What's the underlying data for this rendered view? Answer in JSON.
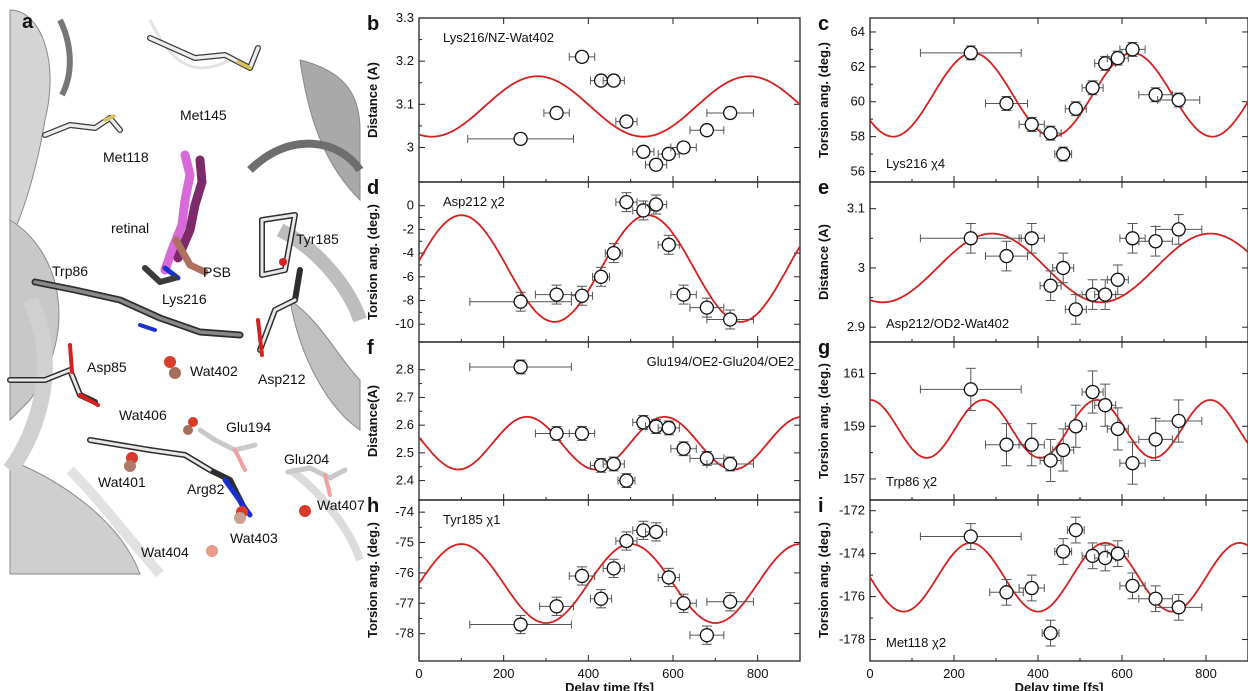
{
  "figure": {
    "structure_panel": {
      "letter": "a",
      "labels": [
        {
          "id": "met145",
          "text": "Met145"
        },
        {
          "id": "met118",
          "text": "Met118"
        },
        {
          "id": "retinal",
          "text": "retinal"
        },
        {
          "id": "tyr185",
          "text": "Tyr185"
        },
        {
          "id": "trp86",
          "text": "Trp86"
        },
        {
          "id": "psb",
          "text": "PSB"
        },
        {
          "id": "lys216",
          "text": "Lys216"
        },
        {
          "id": "asp85",
          "text": "Asp85"
        },
        {
          "id": "wat402",
          "text": "Wat402"
        },
        {
          "id": "asp212",
          "text": "Asp212"
        },
        {
          "id": "wat406",
          "text": "Wat406"
        },
        {
          "id": "glu194",
          "text": "Glu194"
        },
        {
          "id": "glu204",
          "text": "Glu204"
        },
        {
          "id": "wat401",
          "text": "Wat401"
        },
        {
          "id": "arg82",
          "text": "Arg82"
        },
        {
          "id": "wat407",
          "text": "Wat407"
        },
        {
          "id": "wat403",
          "text": "Wat403"
        },
        {
          "id": "wat404",
          "text": "Wat404"
        }
      ]
    }
  },
  "chart_data": [
    {
      "id": "b",
      "letter": "b",
      "type": "scatter",
      "title": "Lys216/NZ-Wat402",
      "ylabel": "Distance (A)",
      "xlabel": "",
      "xlim": [
        0,
        900
      ],
      "ylim": [
        2.92,
        3.3
      ],
      "yticks": [
        3,
        3.1,
        3.2,
        3.3
      ],
      "ytick_labels": [
        "3",
        "3.1",
        "3.2",
        "3.3"
      ],
      "xticks": [
        0,
        200,
        400,
        600,
        800
      ],
      "xtick_labels": [],
      "points": [
        {
          "x": 240,
          "y": 3.02,
          "xerr": 125,
          "yerr": 0.012
        },
        {
          "x": 325,
          "y": 3.08,
          "xerr": 30,
          "yerr": 0.012
        },
        {
          "x": 385,
          "y": 3.21,
          "xerr": 30,
          "yerr": 0.012
        },
        {
          "x": 430,
          "y": 3.155,
          "xerr": 25,
          "yerr": 0.012
        },
        {
          "x": 460,
          "y": 3.155,
          "xerr": 25,
          "yerr": 0.012
        },
        {
          "x": 490,
          "y": 3.06,
          "xerr": 25,
          "yerr": 0.012
        },
        {
          "x": 530,
          "y": 2.99,
          "xerr": 25,
          "yerr": 0.012
        },
        {
          "x": 560,
          "y": 2.96,
          "xerr": 25,
          "yerr": 0.012
        },
        {
          "x": 590,
          "y": 2.985,
          "xerr": 25,
          "yerr": 0.012
        },
        {
          "x": 625,
          "y": 3.0,
          "xerr": 30,
          "yerr": 0.012
        },
        {
          "x": 680,
          "y": 3.04,
          "xerr": 40,
          "yerr": 0.012
        },
        {
          "x": 735,
          "y": 3.08,
          "xerr": 55,
          "yerr": 0.012
        }
      ],
      "fit": {
        "mean": 3.095,
        "amp": 0.07,
        "period": 500,
        "peak_x": 780
      }
    },
    {
      "id": "c",
      "letter": "c",
      "type": "scatter",
      "title": "Lys216 χ4",
      "ylabel": "Torsion ang. (deg.)",
      "xlabel": "",
      "xlim": [
        0,
        900
      ],
      "ylim": [
        55.4,
        64.8
      ],
      "yticks": [
        56,
        58,
        60,
        62,
        64
      ],
      "ytick_labels": [
        "56",
        "58",
        "60",
        "62",
        "64"
      ],
      "xticks": [
        0,
        200,
        400,
        600,
        800
      ],
      "xtick_labels": [],
      "points": [
        {
          "x": 240,
          "y": 62.8,
          "xerr": 120,
          "yerr": 0.4
        },
        {
          "x": 325,
          "y": 59.9,
          "xerr": 50,
          "yerr": 0.4
        },
        {
          "x": 385,
          "y": 58.7,
          "xerr": 30,
          "yerr": 0.4
        },
        {
          "x": 430,
          "y": 58.2,
          "xerr": 25,
          "yerr": 0.4
        },
        {
          "x": 460,
          "y": 57.0,
          "xerr": 20,
          "yerr": 0.4
        },
        {
          "x": 490,
          "y": 59.6,
          "xerr": 25,
          "yerr": 0.4
        },
        {
          "x": 530,
          "y": 60.8,
          "xerr": 25,
          "yerr": 0.4
        },
        {
          "x": 560,
          "y": 62.2,
          "xerr": 25,
          "yerr": 0.4
        },
        {
          "x": 590,
          "y": 62.5,
          "xerr": 25,
          "yerr": 0.4
        },
        {
          "x": 625,
          "y": 63.0,
          "xerr": 30,
          "yerr": 0.4
        },
        {
          "x": 680,
          "y": 60.4,
          "xerr": 40,
          "yerr": 0.4
        },
        {
          "x": 735,
          "y": 60.1,
          "xerr": 50,
          "yerr": 0.4
        }
      ],
      "fit": {
        "mean": 60.4,
        "amp": 2.4,
        "period": 380,
        "peak_x": 245
      }
    },
    {
      "id": "d",
      "letter": "d",
      "type": "scatter",
      "title": "Asp212 χ2",
      "ylabel": "Torsion ang. (deg.)",
      "xlabel": "",
      "xlim": [
        0,
        900
      ],
      "ylim": [
        -11.5,
        2.0
      ],
      "yticks": [
        -10,
        -8,
        -6,
        -4,
        -2,
        0
      ],
      "ytick_labels": [
        "-10",
        "-8",
        "-6",
        "-4",
        "-2",
        "0"
      ],
      "xticks": [
        0,
        200,
        400,
        600,
        800
      ],
      "xtick_labels": [],
      "points": [
        {
          "x": 240,
          "y": -8.1,
          "xerr": 120,
          "yerr": 0.8
        },
        {
          "x": 325,
          "y": -7.5,
          "xerr": 50,
          "yerr": 0.8
        },
        {
          "x": 385,
          "y": -7.6,
          "xerr": 25,
          "yerr": 0.8
        },
        {
          "x": 430,
          "y": -6.0,
          "xerr": 20,
          "yerr": 0.8
        },
        {
          "x": 460,
          "y": -4.0,
          "xerr": 20,
          "yerr": 0.8
        },
        {
          "x": 490,
          "y": 0.3,
          "xerr": 25,
          "yerr": 0.8
        },
        {
          "x": 530,
          "y": -0.4,
          "xerr": 25,
          "yerr": 0.8
        },
        {
          "x": 560,
          "y": 0.1,
          "xerr": 25,
          "yerr": 0.8
        },
        {
          "x": 590,
          "y": -3.3,
          "xerr": 25,
          "yerr": 0.8
        },
        {
          "x": 625,
          "y": -7.5,
          "xerr": 30,
          "yerr": 0.8
        },
        {
          "x": 680,
          "y": -8.6,
          "xerr": 40,
          "yerr": 0.8
        },
        {
          "x": 735,
          "y": -9.6,
          "xerr": 55,
          "yerr": 0.8
        }
      ],
      "fit": {
        "mean": -5.3,
        "amp": 4.5,
        "period": 440,
        "peak_x": 540
      }
    },
    {
      "id": "e",
      "letter": "e",
      "type": "scatter",
      "title": "Asp212/OD2-Wat402",
      "ylabel": "Distance (A)",
      "xlabel": "",
      "xlim": [
        0,
        900
      ],
      "ylim": [
        2.875,
        3.145
      ],
      "yticks": [
        2.9,
        3,
        3.1
      ],
      "ytick_labels": [
        "2.9",
        "3",
        "3.1"
      ],
      "xticks": [
        0,
        200,
        400,
        600,
        800
      ],
      "xtick_labels": [],
      "points": [
        {
          "x": 240,
          "y": 3.05,
          "xerr": 120,
          "yerr": 0.025
        },
        {
          "x": 325,
          "y": 3.02,
          "xerr": 50,
          "yerr": 0.025
        },
        {
          "x": 385,
          "y": 3.05,
          "xerr": 30,
          "yerr": 0.025
        },
        {
          "x": 430,
          "y": 2.97,
          "xerr": 25,
          "yerr": 0.025
        },
        {
          "x": 460,
          "y": 3.0,
          "xerr": 25,
          "yerr": 0.025
        },
        {
          "x": 490,
          "y": 2.93,
          "xerr": 25,
          "yerr": 0.025
        },
        {
          "x": 530,
          "y": 2.955,
          "xerr": 25,
          "yerr": 0.025
        },
        {
          "x": 560,
          "y": 2.955,
          "xerr": 25,
          "yerr": 0.025
        },
        {
          "x": 590,
          "y": 2.98,
          "xerr": 25,
          "yerr": 0.025
        },
        {
          "x": 625,
          "y": 3.05,
          "xerr": 30,
          "yerr": 0.025
        },
        {
          "x": 680,
          "y": 3.045,
          "xerr": 40,
          "yerr": 0.025
        },
        {
          "x": 735,
          "y": 3.065,
          "xerr": 55,
          "yerr": 0.025
        }
      ],
      "fit": {
        "mean": 3.0,
        "amp": 0.058,
        "period": 520,
        "peak_x": 290
      }
    },
    {
      "id": "f",
      "letter": "f",
      "type": "scatter",
      "title": "Glu194/OE2-Glu204/OE2",
      "ylabel": "Distance(A)",
      "xlabel": "",
      "xlim": [
        0,
        900
      ],
      "ylim": [
        2.33,
        2.9
      ],
      "yticks": [
        2.4,
        2.5,
        2.6,
        2.7,
        2.8
      ],
      "ytick_labels": [
        "2.4",
        "2.5",
        "2.6",
        "2.7",
        "2.8"
      ],
      "xticks": [
        0,
        200,
        400,
        600,
        800
      ],
      "xtick_labels": [],
      "points": [
        {
          "x": 240,
          "y": 2.81,
          "xerr": 120,
          "yerr": 0.025
        },
        {
          "x": 325,
          "y": 2.57,
          "xerr": 50,
          "yerr": 0.025
        },
        {
          "x": 385,
          "y": 2.57,
          "xerr": 30,
          "yerr": 0.025
        },
        {
          "x": 430,
          "y": 2.455,
          "xerr": 25,
          "yerr": 0.025
        },
        {
          "x": 460,
          "y": 2.46,
          "xerr": 25,
          "yerr": 0.025
        },
        {
          "x": 490,
          "y": 2.4,
          "xerr": 20,
          "yerr": 0.025
        },
        {
          "x": 530,
          "y": 2.61,
          "xerr": 25,
          "yerr": 0.025
        },
        {
          "x": 560,
          "y": 2.595,
          "xerr": 25,
          "yerr": 0.025
        },
        {
          "x": 590,
          "y": 2.59,
          "xerr": 25,
          "yerr": 0.025
        },
        {
          "x": 625,
          "y": 2.515,
          "xerr": 30,
          "yerr": 0.025
        },
        {
          "x": 680,
          "y": 2.48,
          "xerr": 40,
          "yerr": 0.025
        },
        {
          "x": 735,
          "y": 2.46,
          "xerr": 55,
          "yerr": 0.025
        }
      ],
      "fit": {
        "mean": 2.535,
        "amp": 0.095,
        "period": 325,
        "peak_x": 580
      }
    },
    {
      "id": "g",
      "letter": "g",
      "type": "scatter",
      "title": "Trp86 χ2",
      "ylabel": "Torsion ang. (deg.)",
      "xlabel": "",
      "xlim": [
        0,
        900
      ],
      "ylim": [
        156.2,
        162.2
      ],
      "yticks": [
        157,
        159,
        161
      ],
      "ytick_labels": [
        "157",
        "159",
        "161"
      ],
      "xticks": [
        0,
        200,
        400,
        600,
        800
      ],
      "xtick_labels": [],
      "points": [
        {
          "x": 240,
          "y": 160.4,
          "xerr": 120,
          "yerr": 0.8
        },
        {
          "x": 325,
          "y": 158.3,
          "xerr": 50,
          "yerr": 0.8
        },
        {
          "x": 385,
          "y": 158.3,
          "xerr": 30,
          "yerr": 0.8
        },
        {
          "x": 430,
          "y": 157.7,
          "xerr": 25,
          "yerr": 0.8
        },
        {
          "x": 460,
          "y": 158.1,
          "xerr": 25,
          "yerr": 0.8
        },
        {
          "x": 490,
          "y": 159.0,
          "xerr": 25,
          "yerr": 0.8
        },
        {
          "x": 530,
          "y": 160.3,
          "xerr": 25,
          "yerr": 0.8
        },
        {
          "x": 560,
          "y": 159.8,
          "xerr": 25,
          "yerr": 0.8
        },
        {
          "x": 590,
          "y": 158.9,
          "xerr": 25,
          "yerr": 0.8
        },
        {
          "x": 625,
          "y": 157.6,
          "xerr": 30,
          "yerr": 0.8
        },
        {
          "x": 680,
          "y": 158.5,
          "xerr": 40,
          "yerr": 0.8
        },
        {
          "x": 735,
          "y": 159.2,
          "xerr": 55,
          "yerr": 0.8
        }
      ],
      "fit": {
        "mean": 158.9,
        "amp": 1.1,
        "period": 270,
        "peak_x": 540
      }
    },
    {
      "id": "h",
      "letter": "h",
      "type": "scatter",
      "title": "Tyr185 χ1",
      "ylabel": "Torsion ang. (deg.)",
      "xlabel": "Delay time [fs]",
      "xlim": [
        0,
        900
      ],
      "ylim": [
        -78.9,
        -73.6
      ],
      "yticks": [
        -78,
        -77,
        -76,
        -75,
        -74
      ],
      "ytick_labels": [
        "-78",
        "-77",
        "-76",
        "-75",
        "-74"
      ],
      "xticks": [
        0,
        200,
        400,
        600,
        800
      ],
      "xtick_labels": [
        "0",
        "200",
        "400",
        "600",
        "800"
      ],
      "points": [
        {
          "x": 240,
          "y": -77.7,
          "xerr": 120,
          "yerr": 0.3
        },
        {
          "x": 325,
          "y": -77.1,
          "xerr": 40,
          "yerr": 0.3
        },
        {
          "x": 385,
          "y": -76.1,
          "xerr": 30,
          "yerr": 0.3
        },
        {
          "x": 430,
          "y": -76.85,
          "xerr": 25,
          "yerr": 0.3
        },
        {
          "x": 460,
          "y": -75.85,
          "xerr": 25,
          "yerr": 0.3
        },
        {
          "x": 490,
          "y": -74.95,
          "xerr": 25,
          "yerr": 0.3
        },
        {
          "x": 530,
          "y": -74.6,
          "xerr": 25,
          "yerr": 0.3
        },
        {
          "x": 560,
          "y": -74.65,
          "xerr": 25,
          "yerr": 0.3
        },
        {
          "x": 590,
          "y": -76.15,
          "xerr": 25,
          "yerr": 0.3
        },
        {
          "x": 625,
          "y": -77.0,
          "xerr": 30,
          "yerr": 0.3
        },
        {
          "x": 680,
          "y": -78.05,
          "xerr": 40,
          "yerr": 0.3
        },
        {
          "x": 735,
          "y": -76.95,
          "xerr": 55,
          "yerr": 0.3
        }
      ],
      "fit": {
        "mean": -76.35,
        "amp": 1.3,
        "period": 400,
        "peak_x": 500
      }
    },
    {
      "id": "i",
      "letter": "i",
      "type": "scatter",
      "title": "Met118 χ2",
      "ylabel": "Torsion ang. (deg.)",
      "xlabel": "Delay time [fs]",
      "xlim": [
        0,
        900
      ],
      "ylim": [
        -179.0,
        -171.5
      ],
      "yticks": [
        -178,
        -176,
        -174,
        -172
      ],
      "ytick_labels": [
        "-178",
        "-176",
        "-174",
        "-172"
      ],
      "xticks": [
        0,
        200,
        400,
        600,
        800
      ],
      "xtick_labels": [
        "0",
        "200",
        "400",
        "600",
        "800"
      ],
      "points": [
        {
          "x": 240,
          "y": -173.2,
          "xerr": 120,
          "yerr": 0.6
        },
        {
          "x": 325,
          "y": -175.8,
          "xerr": 40,
          "yerr": 0.6
        },
        {
          "x": 385,
          "y": -175.6,
          "xerr": 30,
          "yerr": 0.6
        },
        {
          "x": 430,
          "y": -177.7,
          "xerr": 20,
          "yerr": 0.6
        },
        {
          "x": 460,
          "y": -173.9,
          "xerr": 20,
          "yerr": 0.6
        },
        {
          "x": 490,
          "y": -172.9,
          "xerr": 20,
          "yerr": 0.6
        },
        {
          "x": 530,
          "y": -174.1,
          "xerr": 25,
          "yerr": 0.6
        },
        {
          "x": 560,
          "y": -174.2,
          "xerr": 25,
          "yerr": 0.6
        },
        {
          "x": 590,
          "y": -174.0,
          "xerr": 25,
          "yerr": 0.6
        },
        {
          "x": 625,
          "y": -175.5,
          "xerr": 30,
          "yerr": 0.6
        },
        {
          "x": 680,
          "y": -176.1,
          "xerr": 40,
          "yerr": 0.6
        },
        {
          "x": 735,
          "y": -176.5,
          "xerr": 55,
          "yerr": 0.6
        }
      ],
      "fit": {
        "mean": -175.1,
        "amp": 1.6,
        "period": 320,
        "peak_x": 560
      }
    }
  ],
  "colors": {
    "fit_curve": "#d61f1f",
    "marker_fill": "#ffffff",
    "marker_stroke": "#111111",
    "error_bar": "#555555",
    "axis": "#222222",
    "water": "#d93a2a",
    "water_pale": "#c98f80",
    "carbon": "#d9d9d9",
    "nitrogen": "#1a2fd0",
    "oxygen": "#d92020",
    "retinal_dark": "#8a2e78",
    "retinal_light": "#d86ad8",
    "helix": "#9a9a9a"
  }
}
